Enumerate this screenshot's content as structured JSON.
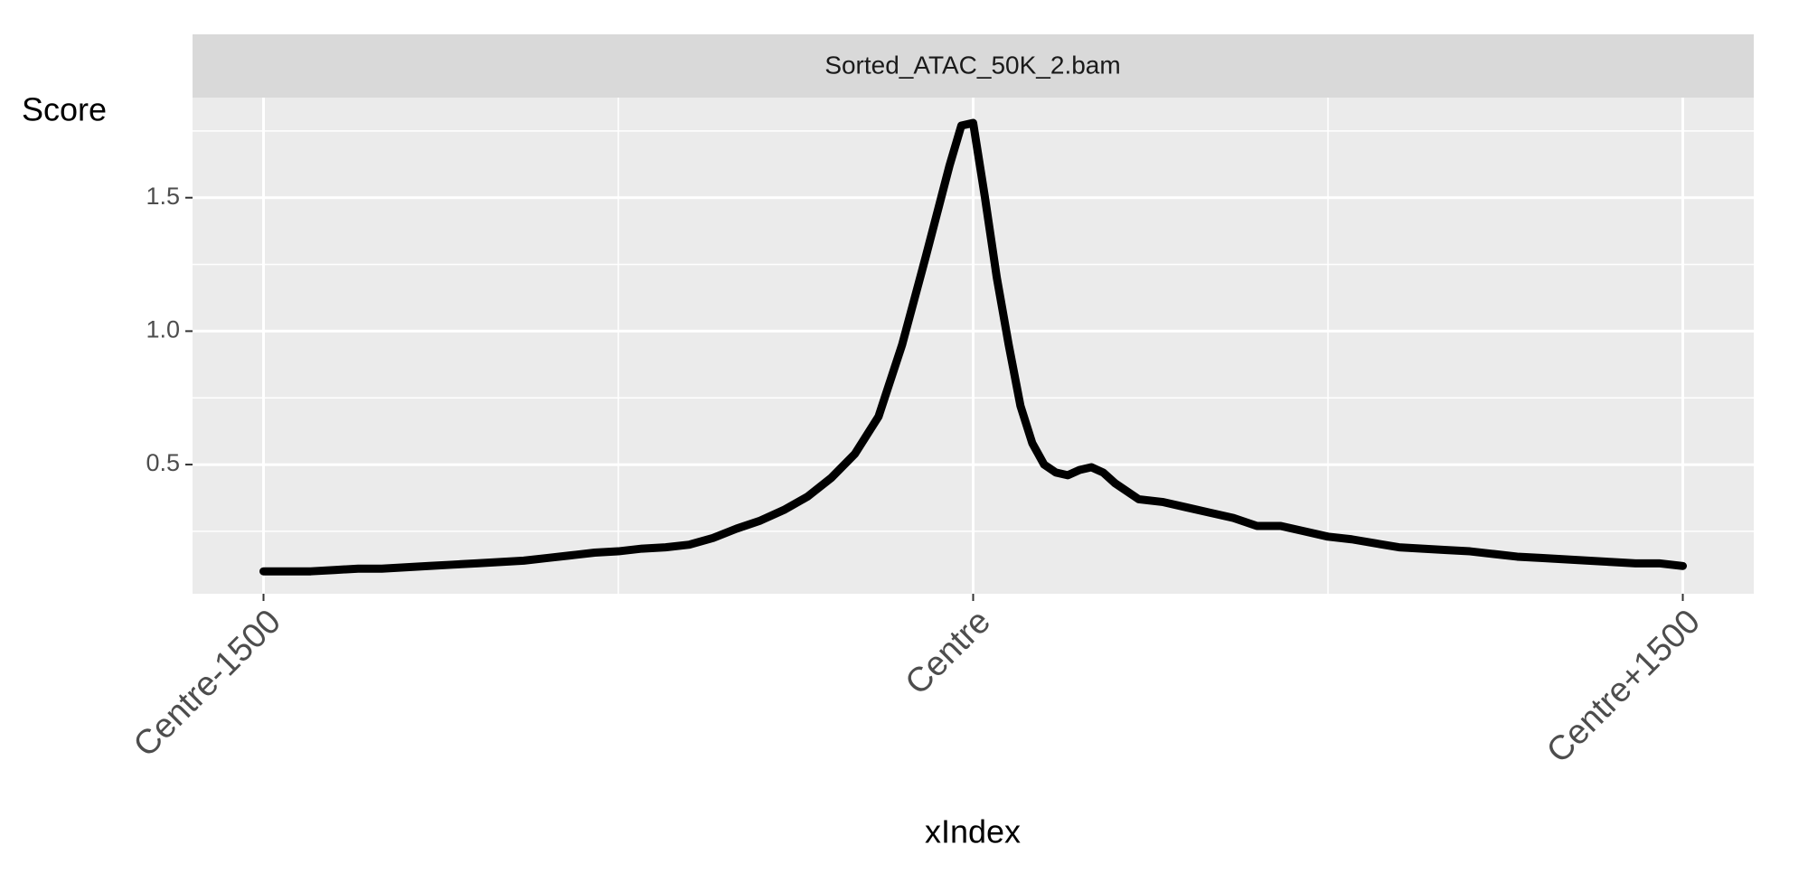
{
  "chart_data": {
    "type": "line",
    "panel_title": "Sorted_ATAC_50K_2.bam",
    "x_label": "xIndex",
    "y_label": "Score",
    "x": [
      -1500,
      -1450,
      -1400,
      -1350,
      -1300,
      -1250,
      -1200,
      -1150,
      -1100,
      -1050,
      -1000,
      -950,
      -900,
      -850,
      -800,
      -750,
      -700,
      -650,
      -600,
      -550,
      -500,
      -450,
      -400,
      -350,
      -300,
      -250,
      -200,
      -150,
      -100,
      -50,
      -25,
      0,
      25,
      50,
      75,
      100,
      125,
      150,
      175,
      200,
      225,
      250,
      275,
      300,
      350,
      400,
      450,
      500,
      550,
      600,
      650,
      700,
      750,
      800,
      850,
      900,
      950,
      1000,
      1050,
      1100,
      1150,
      1200,
      1250,
      1300,
      1350,
      1400,
      1450,
      1500
    ],
    "series": [
      {
        "color": "#000000",
        "values": [
          0.1,
          0.1,
          0.1,
          0.105,
          0.11,
          0.11,
          0.115,
          0.12,
          0.125,
          0.13,
          0.135,
          0.14,
          0.15,
          0.16,
          0.17,
          0.175,
          0.185,
          0.19,
          0.2,
          0.225,
          0.26,
          0.29,
          0.33,
          0.38,
          0.45,
          0.54,
          0.68,
          0.95,
          1.28,
          1.62,
          1.77,
          1.78,
          1.5,
          1.2,
          0.95,
          0.72,
          0.58,
          0.5,
          0.47,
          0.46,
          0.48,
          0.49,
          0.47,
          0.43,
          0.37,
          0.36,
          0.34,
          0.32,
          0.3,
          0.27,
          0.27,
          0.25,
          0.23,
          0.22,
          0.205,
          0.19,
          0.185,
          0.18,
          0.175,
          0.165,
          0.155,
          0.15,
          0.145,
          0.14,
          0.135,
          0.13,
          0.13,
          0.12
        ]
      }
    ],
    "xlim": [
      -1650,
      1650
    ],
    "ylim": [
      0.016,
      1.875
    ],
    "xticks": [
      {
        "value": -1500,
        "label": "Centre-1500"
      },
      {
        "value": 0,
        "label": "Centre"
      },
      {
        "value": 1500,
        "label": "Centre+1500"
      }
    ],
    "yticks": [
      0.5,
      {
        "value": 1,
        "label": "1.0"
      },
      1.5
    ],
    "minor_xticks": [
      -750,
      750
    ],
    "minor_yticks": [
      0.25,
      0.75,
      1.25,
      1.75
    ],
    "grid": true
  }
}
